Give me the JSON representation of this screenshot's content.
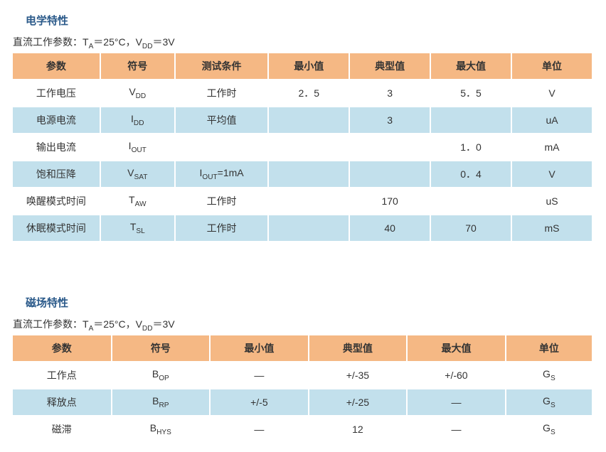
{
  "colors": {
    "header_bg": "#f5b884",
    "row_even_bg": "#c2e0ec",
    "row_odd_bg": "#ffffff",
    "title_color": "#2b5a8a",
    "border_color": "#ffffff",
    "text_color": "#333333"
  },
  "section1": {
    "title": "电学特性",
    "subtitle_prefix": "直流工作参数：T",
    "subtitle_sub1": "A",
    "subtitle_mid1": "＝25°C，V",
    "subtitle_sub2": "DD",
    "subtitle_tail": "＝3V",
    "headers": [
      "参数",
      "符号",
      "测试条件",
      "最小值",
      "典型值",
      "最大值",
      "单位"
    ],
    "col_widths": [
      "14%",
      "12%",
      "15%",
      "13%",
      "13%",
      "13%",
      "13%"
    ],
    "rows": [
      {
        "param": "工作电压",
        "sym": "V",
        "sub": "DD",
        "cond": "工作时",
        "min": "2．5",
        "typ": "3",
        "max": "5．5",
        "unit": "V"
      },
      {
        "param": "电源电流",
        "sym": "I",
        "sub": "DD",
        "cond": "平均值",
        "min": "",
        "typ": "3",
        "max": "",
        "unit": "uA"
      },
      {
        "param": "输出电流",
        "sym": "I",
        "sub": "OUT",
        "cond": "",
        "min": "",
        "typ": "",
        "max": "1．0",
        "unit": "mA"
      },
      {
        "param": "饱和压降",
        "sym": "V",
        "sub": "SAT",
        "cond_pre": "I",
        "cond_sub": "OUT",
        "cond_post": "=1mA",
        "min": "",
        "typ": "",
        "max": "0．4",
        "unit": "V"
      },
      {
        "param": "唤醒模式时间",
        "sym": "T",
        "sub": "AW",
        "cond": "工作时",
        "min": "",
        "typ": "170",
        "max": "",
        "unit": "uS"
      },
      {
        "param": "休眠模式时间",
        "sym": "T",
        "sub": "SL",
        "cond": "工作时",
        "min": "",
        "typ": "40",
        "max": "70",
        "unit": "mS"
      }
    ]
  },
  "section2": {
    "title": "磁场特性",
    "subtitle_prefix": "直流工作参数：T",
    "subtitle_sub1": "A",
    "subtitle_mid1": "＝25°C，V",
    "subtitle_sub2": "DD",
    "subtitle_tail": "＝3V",
    "headers": [
      "参数",
      "符号",
      "最小值",
      "典型值",
      "最大值",
      "单位"
    ],
    "col_widths": [
      "17%",
      "17%",
      "17%",
      "17%",
      "17%",
      "15%"
    ],
    "rows": [
      {
        "param": "工作点",
        "sym": "B",
        "sub": "OP",
        "min": "—",
        "typ": "+/-35",
        "max": "+/-60",
        "unit": "G",
        "unit_sub": "S"
      },
      {
        "param": "释放点",
        "sym": "B",
        "sub": "RP",
        "min": "+/-5",
        "typ": "+/-25",
        "max": "—",
        "unit": "G",
        "unit_sub": "S"
      },
      {
        "param": "磁滞",
        "sym": "B",
        "sub": "HYS",
        "min": "—",
        "typ": "12",
        "max": "—",
        "unit": "G",
        "unit_sub": "S"
      }
    ]
  }
}
